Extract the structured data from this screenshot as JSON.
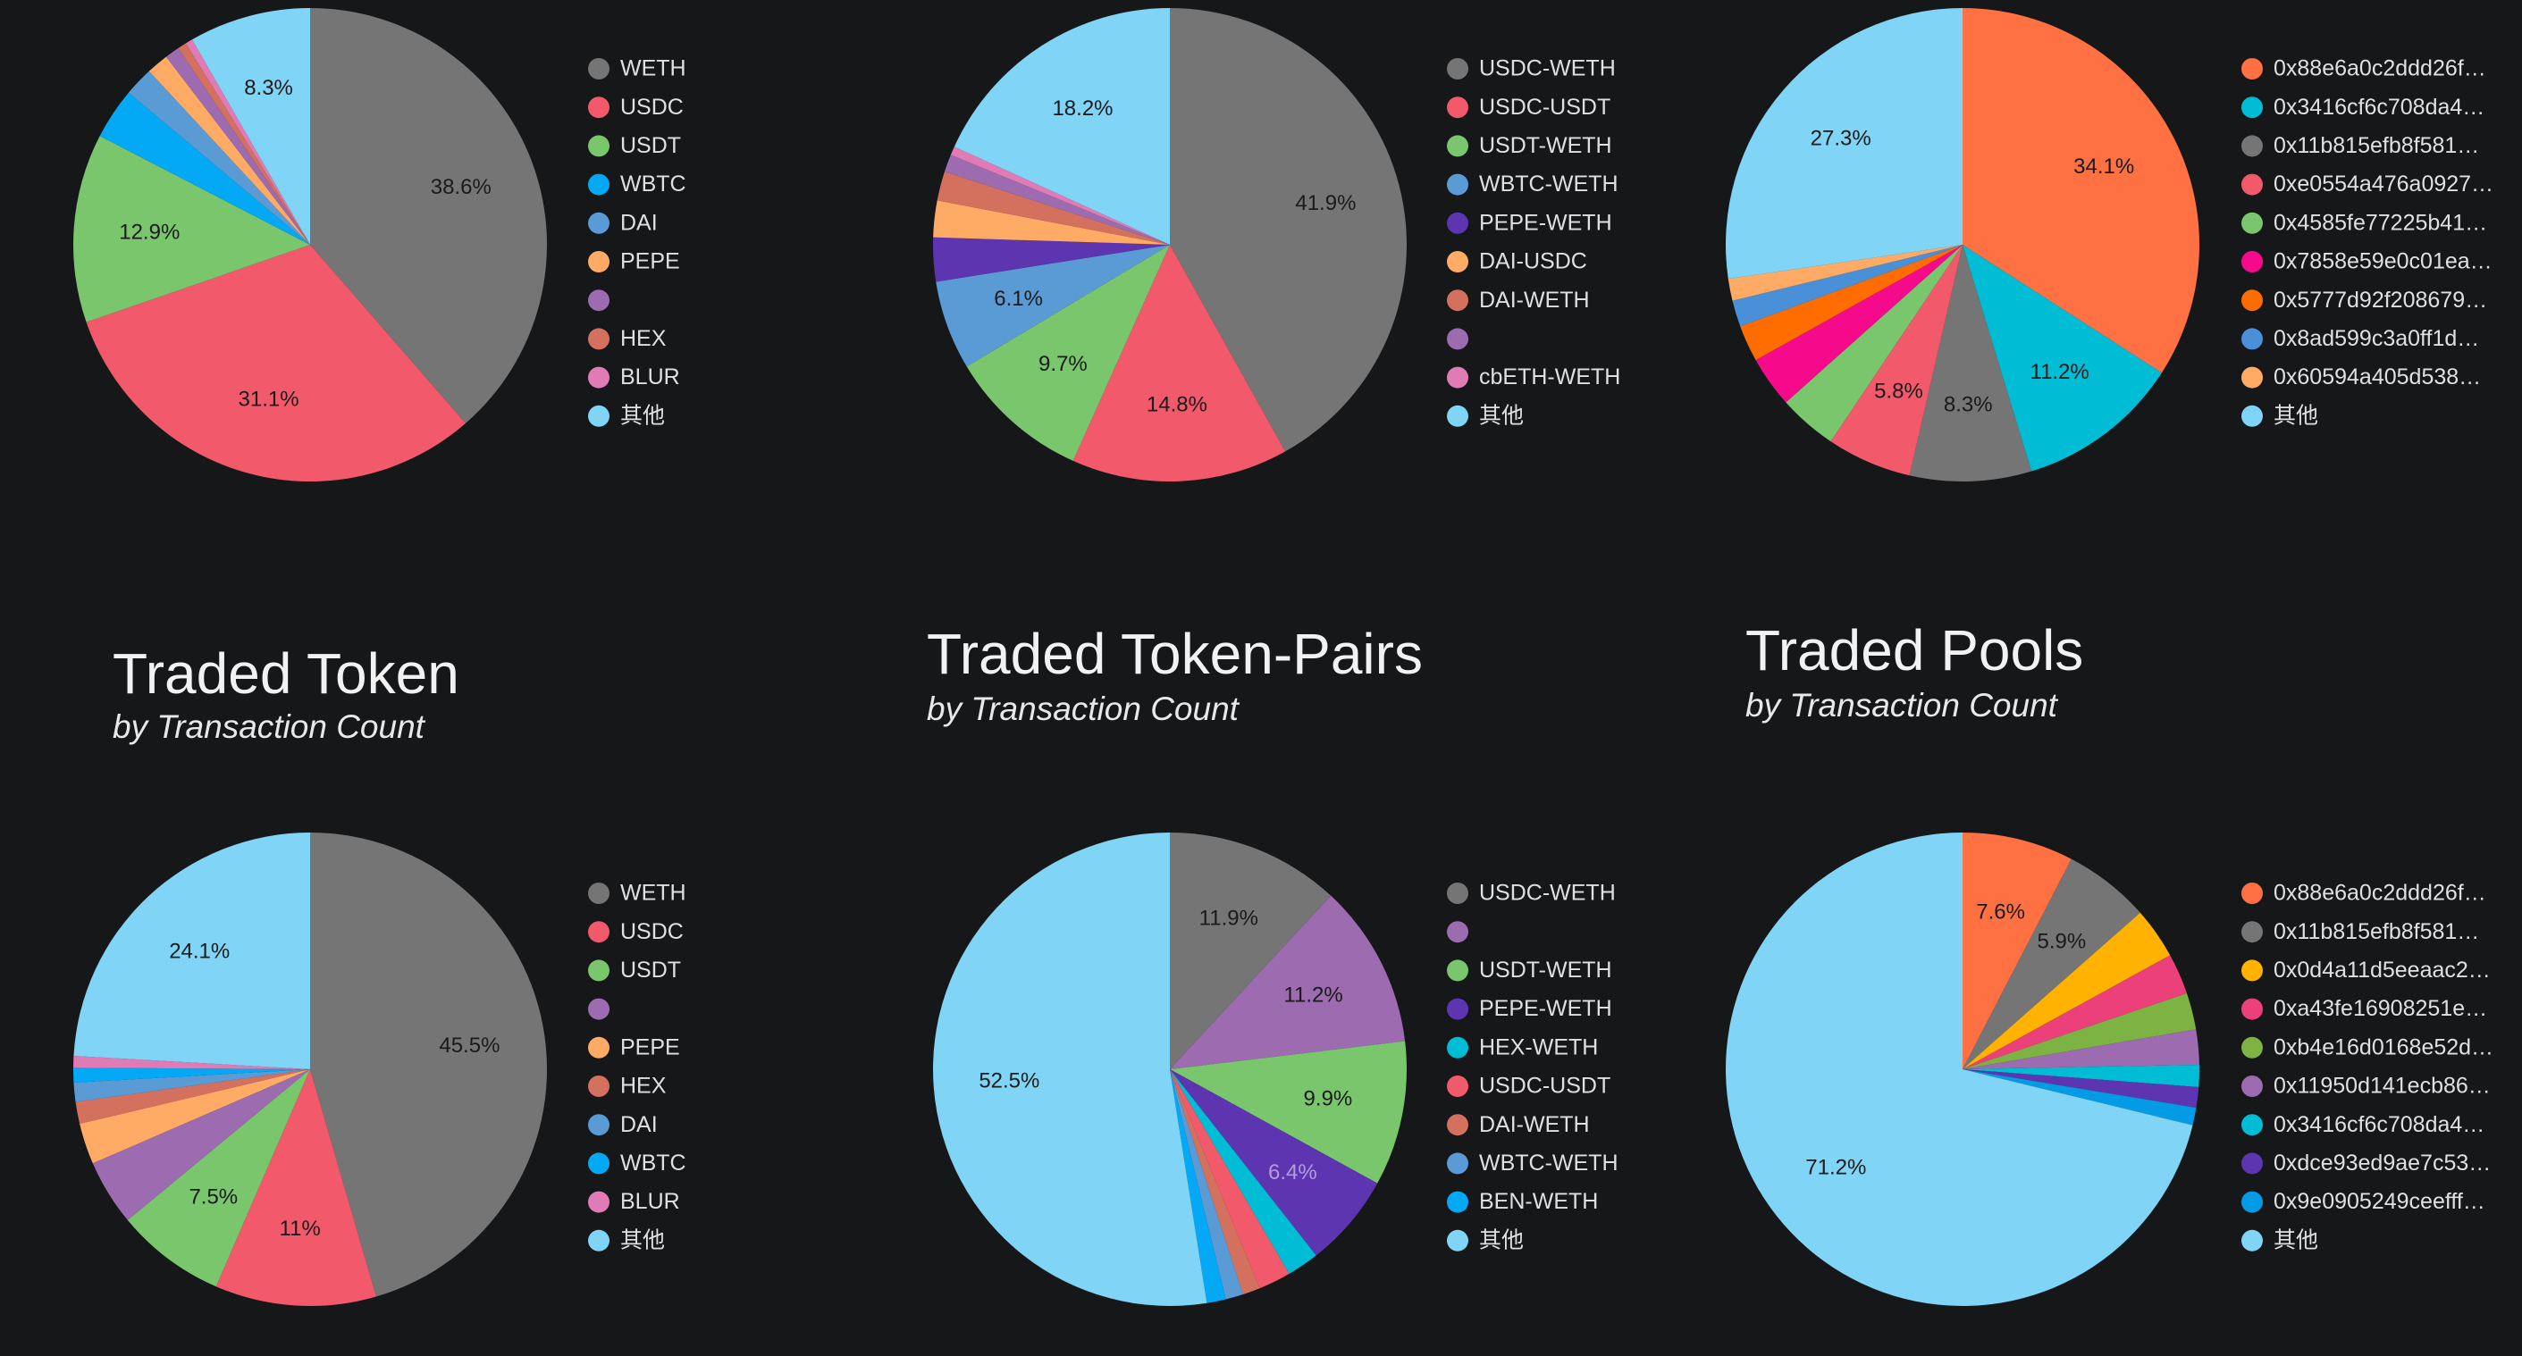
{
  "chart_data": [
    {
      "type": "pie",
      "categories": [
        "WETH",
        "USDC",
        "USDT",
        "WBTC",
        "DAI",
        "PEPE",
        null,
        "HEX",
        "BLUR",
        "其他"
      ],
      "values": [
        38.6,
        31.1,
        12.9,
        3.5,
        2,
        1.5,
        1,
        0.6,
        0.5,
        8.3
      ],
      "value_labels": [
        "38.6%",
        "31.1%",
        "12.9%",
        null,
        null,
        null,
        null,
        null,
        null,
        "8.3%"
      ],
      "colors": [
        "#757575",
        "#f2596a",
        "#7ac66d",
        "#03a9f4",
        "#5b9bd5",
        "#ffab66",
        "#9c6bb0",
        "#d4715e",
        "#e07bb5",
        "#80d4f6"
      ]
    },
    {
      "type": "pie",
      "categories": [
        "USDC-WETH",
        "USDC-USDT",
        "USDT-WETH",
        "WBTC-WETH",
        "PEPE-WETH",
        "DAI-USDC",
        "DAI-WETH",
        null,
        "cbETH-WETH",
        "其他"
      ],
      "values": [
        41.9,
        14.8,
        9.7,
        6.1,
        3,
        2.5,
        2,
        1.2,
        0.6,
        18.2
      ],
      "value_labels": [
        "41.9%",
        "14.8%",
        "9.7%",
        "6.1%",
        null,
        null,
        null,
        null,
        null,
        "18.2%"
      ],
      "colors": [
        "#757575",
        "#f2596a",
        "#7ac66d",
        "#5b9bd5",
        "#5e35b1",
        "#ffab66",
        "#d4715e",
        "#9c6bb0",
        "#e07bb5",
        "#80d4f6"
      ]
    },
    {
      "type": "pie",
      "categories": [
        "0x88e6a0c2ddd26f…",
        "0x3416cf6c708da4…",
        "0x11b815efb8f581…",
        "0xe0554a476a0927…",
        "0x4585fe77225b41…",
        "0x7858e59e0c01ea…",
        "0x5777d92f208679…",
        "0x8ad599c3a0ff1d…",
        "0x60594a405d538…",
        "其他"
      ],
      "values": [
        34.1,
        11.2,
        8.3,
        5.8,
        4,
        3.5,
        2.5,
        1.8,
        1.5,
        27.3
      ],
      "value_labels": [
        "34.1%",
        "11.2%",
        "8.3%",
        "5.8%",
        null,
        null,
        null,
        null,
        null,
        "27.3%"
      ],
      "colors": [
        "#ff7043",
        "#00bcd4",
        "#757575",
        "#f2596a",
        "#7ac66d",
        "#f50a8c",
        "#ff6d00",
        "#4a90d9",
        "#ffab66",
        "#80d4f6"
      ]
    },
    {
      "type": "pie",
      "title": "Traded Token",
      "subtitle": "by Transaction Count",
      "categories": [
        "WETH",
        "USDC",
        "USDT",
        null,
        "PEPE",
        "HEX",
        "DAI",
        "WBTC",
        "BLUR",
        "其他"
      ],
      "values": [
        45.5,
        11,
        7.5,
        4.5,
        2.8,
        1.5,
        1.3,
        1,
        0.8,
        24.1
      ],
      "value_labels": [
        "45.5%",
        "11%",
        "7.5%",
        null,
        null,
        null,
        null,
        null,
        null,
        "24.1%"
      ],
      "colors": [
        "#757575",
        "#f2596a",
        "#7ac66d",
        "#9c6bb0",
        "#ffab66",
        "#d4715e",
        "#5b9bd5",
        "#03a9f4",
        "#e07bb5",
        "#80d4f6"
      ]
    },
    {
      "type": "pie",
      "title": "Traded Token-Pairs",
      "subtitle": "by Transaction Count",
      "categories": [
        "USDC-WETH",
        null,
        "USDT-WETH",
        "PEPE-WETH",
        "HEX-WETH",
        "USDC-USDT",
        "DAI-WETH",
        "WBTC-WETH",
        "BEN-WETH",
        "其他"
      ],
      "values": [
        11.9,
        11.2,
        9.9,
        6.4,
        2.2,
        2.2,
        1.2,
        1.2,
        1.3,
        52.5
      ],
      "value_labels": [
        "11.9%",
        "11.2%",
        "9.9%",
        "6.4%",
        null,
        null,
        null,
        null,
        null,
        "52.5%"
      ],
      "colors": [
        "#757575",
        "#9c6bb0",
        "#7ac66d",
        "#5e35b1",
        "#00bcd4",
        "#f2596a",
        "#d4715e",
        "#5b9bd5",
        "#03a9f4",
        "#80d4f6"
      ]
    },
    {
      "type": "pie",
      "title": "Traded Pools",
      "subtitle": "by Transaction Count",
      "categories": [
        "0x88e6a0c2ddd26f…",
        "0x11b815efb8f581…",
        "0x0d4a11d5eeaac2…",
        "0xa43fe16908251e…",
        "0xb4e16d0168e52d…",
        "0x11950d141ecb86…",
        "0x3416cf6c708da4…",
        "0xdce93ed9ae7c53…",
        "0x9e0905249ceefff…",
        "其他"
      ],
      "values": [
        7.6,
        5.9,
        3.5,
        2.8,
        2.5,
        2.4,
        1.5,
        1.4,
        1.2,
        71.2
      ],
      "value_labels": [
        "7.6%",
        "5.9%",
        null,
        null,
        null,
        null,
        null,
        null,
        null,
        "71.2%"
      ],
      "colors": [
        "#ff7043",
        "#757575",
        "#ffb300",
        "#ec407a",
        "#7cb342",
        "#9c6bb0",
        "#00bcd4",
        "#5e35b1",
        "#039be5",
        "#80d4f6"
      ]
    }
  ]
}
